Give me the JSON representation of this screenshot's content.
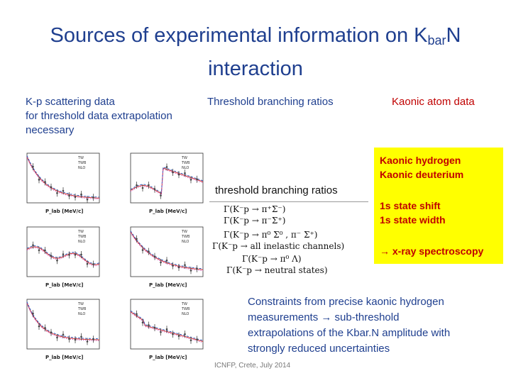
{
  "slide": {
    "title_pre": "Sources of experimental information on K",
    "title_sub": "bar",
    "title_post": "N",
    "title_line2": "interaction",
    "col1_line1": "K-p scattering data",
    "col1_line2": "for threshold data extrapolation",
    "col1_line3": "necessary",
    "col2_head": "Threshold branching ratios",
    "col3_head": "Kaonic atom data",
    "branching_title": "threshold branching ratios",
    "formulas": [
      "Γ(K⁻p → π⁺Σ⁻)",
      "Γ(K⁻p → π⁻Σ⁺)",
      "Γ(K⁻p → π⁰ Σ⁰ , π⁻ Σ⁺)",
      "Γ(K⁻p → all inelastic channels)",
      "Γ(K⁻p → π⁰ Λ)",
      "Γ(K⁻p → neutral states)"
    ],
    "kaonic_1": "Kaonic hydrogen",
    "kaonic_2": "Kaonic deuterium",
    "kaonic_3": "1s state shift",
    "kaonic_4": "1s state width",
    "kaonic_5": "→ x-ray spectroscopy",
    "constraints_1": "Constraints from precise kaonic hydrogen",
    "constraints_2": "measurements → sub-threshold",
    "constraints_3": "extrapolations of the Kbar.N amplitude with",
    "constraints_4": "strongly reduced uncertainties",
    "footer": "ICNFP, Crete, July 2014"
  },
  "plots": {
    "xlabel": "P_lab [MeV/c]",
    "legend": [
      "TW",
      "TWB",
      "NLO"
    ],
    "colors": {
      "data": "#444444",
      "tw": "#3060c0",
      "twb": "#d03030",
      "nlo": "#c040c0"
    }
  }
}
